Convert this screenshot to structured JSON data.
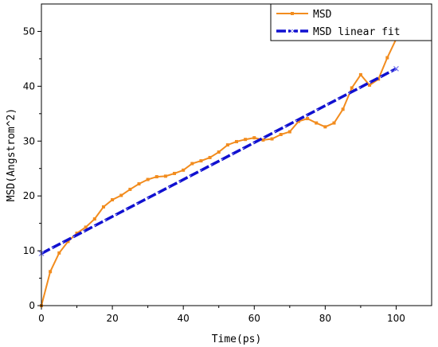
{
  "chart_data": {
    "type": "line",
    "title": "",
    "xlabel": "Time(ps)",
    "ylabel": "MSD(Angstrom^2)",
    "xlim": [
      0,
      110
    ],
    "ylim": [
      0,
      55
    ],
    "x_ticks": [
      0,
      20,
      40,
      60,
      80,
      100
    ],
    "y_ticks": [
      0,
      10,
      20,
      30,
      40,
      50
    ],
    "grid": false,
    "legend_position": "top-right",
    "series": [
      {
        "name": "MSD",
        "color": "#f28c1e",
        "marker": "square",
        "x": [
          0,
          2.5,
          5,
          7.5,
          10,
          12.5,
          15,
          17.5,
          20,
          22.5,
          25,
          27.5,
          30,
          32.5,
          35,
          37.5,
          40,
          42.5,
          45,
          47.5,
          50,
          52.5,
          55,
          57.5,
          60,
          62.5,
          65,
          67.5,
          70,
          72.5,
          75,
          77.5,
          80,
          82.5,
          85,
          87.5,
          90,
          92.5,
          95,
          97.5,
          100
        ],
        "y": [
          0,
          6.2,
          9.6,
          11.7,
          13.2,
          14.3,
          15.8,
          18.0,
          19.3,
          20.1,
          21.2,
          22.2,
          23.0,
          23.5,
          23.6,
          24.1,
          24.7,
          25.9,
          26.4,
          27.0,
          28.0,
          29.3,
          29.9,
          30.3,
          30.6,
          30.2,
          30.4,
          31.2,
          31.7,
          33.6,
          34.1,
          33.3,
          32.6,
          33.3,
          35.8,
          39.7,
          42.1,
          40.2,
          41.3,
          45.2,
          48.6
        ]
      },
      {
        "name": "MSD linear fit",
        "color": "#1010d0",
        "x": [
          0,
          100
        ],
        "y": [
          9.5,
          43.2
        ]
      }
    ]
  }
}
